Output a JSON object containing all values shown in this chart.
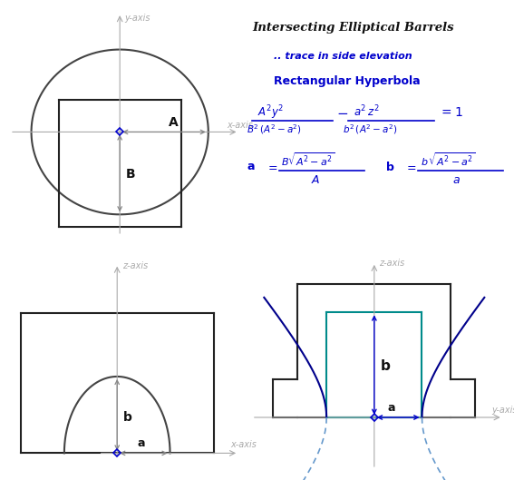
{
  "bg_color": "#ffffff",
  "title": "Intersecting Elliptical Barrels",
  "subtitle1": ".. trace in side elevation",
  "subtitle2": "Rectangular Hyperbola",
  "axis_color": "#aaaaaa",
  "arrow_color": "#888888",
  "blue_diamond": "#0000cc",
  "text_black": "#111111",
  "text_blue": "#0000cc",
  "ellipse_color": "#444444",
  "rect_color": "#222222",
  "hyperbola_solid_color": "#00008B",
  "hyperbola_dashed_color": "#6699cc",
  "teal_rect_color": "#008B8B",
  "fig_w": 5.67,
  "fig_h": 5.4,
  "dpi": 100
}
